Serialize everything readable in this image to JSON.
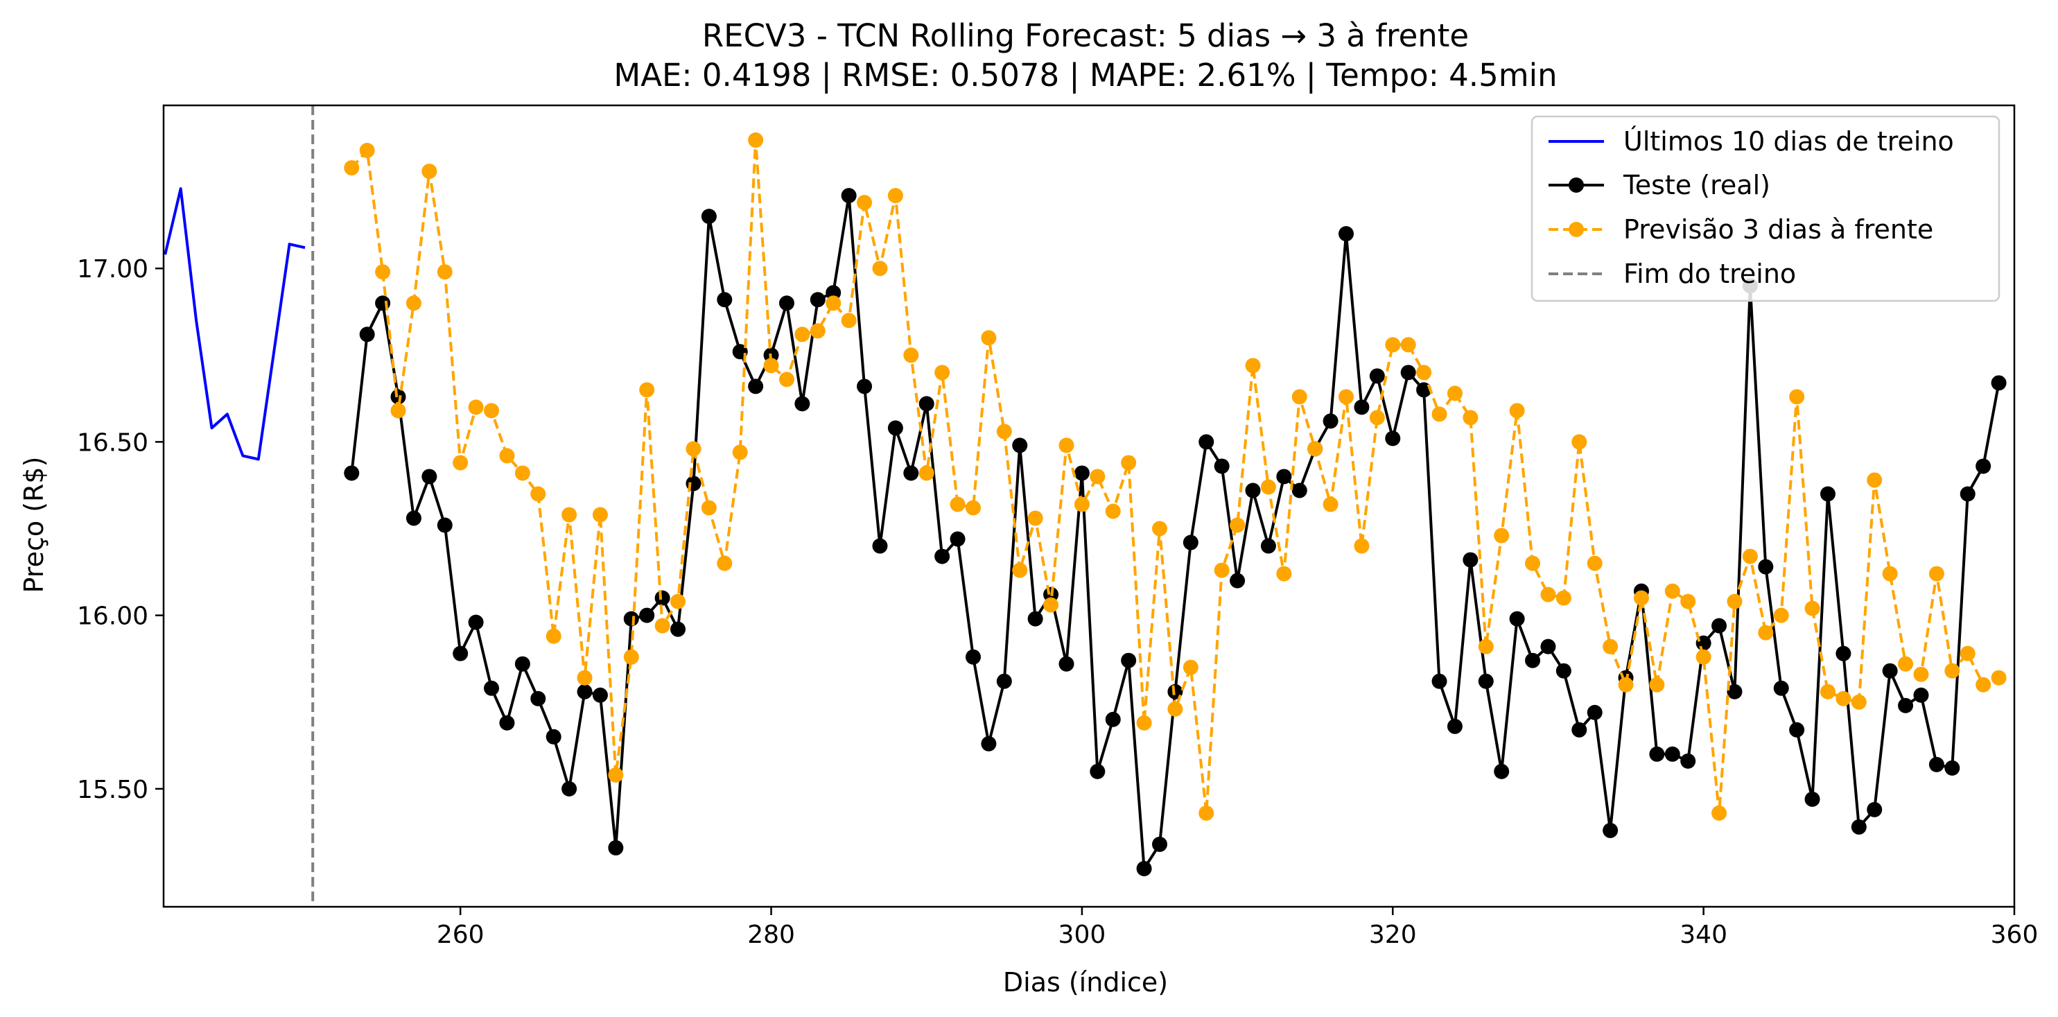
{
  "chart_data": {
    "type": "line",
    "title": "RECV3 - TCN Rolling Forecast: 5 dias → 3 à frente",
    "subtitle": "MAE: 0.4198 | RMSE: 0.5078 | MAPE: 2.61% | Tempo: 4.5min",
    "xlabel": "Dias (índice)",
    "ylabel": "Preço (R$)",
    "xlim": [
      240.9,
      360
    ],
    "ylim": [
      15.16,
      17.47
    ],
    "xticks": [
      260,
      280,
      300,
      320,
      340,
      360
    ],
    "xtick_labels": [
      "260",
      "280",
      "300",
      "320",
      "340",
      "360"
    ],
    "yticks": [
      15.5,
      16.0,
      16.5,
      17.0
    ],
    "ytick_labels": [
      "15.50",
      "16.00",
      "16.50",
      "17.00"
    ],
    "grid": false,
    "legend_position": "top-right",
    "vline": {
      "x": 250.5,
      "label": "Fim do treino",
      "color": "#808080",
      "style": "dashed"
    },
    "series": [
      {
        "name": "Últimos 10 dias de treino",
        "color": "#0000ff",
        "style": "solid",
        "marker": "none",
        "x": [
          241,
          242,
          243,
          244,
          245,
          246,
          247,
          248,
          249,
          250
        ],
        "y": [
          17.04,
          17.23,
          16.85,
          16.54,
          16.58,
          16.46,
          16.45,
          16.76,
          17.07,
          17.06
        ]
      },
      {
        "name": "Teste (real)",
        "color": "#000000",
        "style": "solid",
        "marker": "circle",
        "x": [
          253,
          254,
          255,
          256,
          257,
          258,
          259,
          260,
          261,
          262,
          263,
          264,
          265,
          266,
          267,
          268,
          269,
          270,
          271,
          272,
          273,
          274,
          275,
          276,
          277,
          278,
          279,
          280,
          281,
          282,
          283,
          284,
          285,
          286,
          287,
          288,
          289,
          290,
          291,
          292,
          293,
          294,
          295,
          296,
          297,
          298,
          299,
          300,
          301,
          302,
          303,
          304,
          305,
          306,
          307,
          308,
          309,
          310,
          311,
          312,
          313,
          314,
          315,
          316,
          317,
          318,
          319,
          320,
          321,
          322,
          323,
          324,
          325,
          326,
          327,
          328,
          329,
          330,
          331,
          332,
          333,
          334,
          335,
          336,
          337,
          338,
          339,
          340,
          341,
          342,
          343,
          344,
          345,
          346,
          347,
          348,
          349,
          350,
          351,
          352,
          353,
          354,
          355,
          356,
          357,
          358,
          359
        ],
        "y": [
          16.41,
          16.81,
          16.9,
          16.63,
          16.28,
          16.4,
          16.26,
          15.89,
          15.98,
          15.79,
          15.69,
          15.86,
          15.76,
          15.65,
          15.5,
          15.78,
          15.77,
          15.33,
          15.99,
          16.0,
          16.05,
          15.96,
          16.38,
          17.15,
          16.91,
          16.76,
          16.66,
          16.75,
          16.9,
          16.61,
          16.91,
          16.93,
          17.21,
          16.66,
          16.2,
          16.54,
          16.41,
          16.61,
          16.17,
          16.22,
          15.88,
          15.63,
          15.81,
          16.49,
          15.99,
          16.06,
          15.86,
          16.41,
          15.55,
          15.7,
          15.87,
          15.27,
          15.34,
          15.78,
          16.21,
          16.5,
          16.43,
          16.1,
          16.36,
          16.2,
          16.4,
          16.36,
          16.48,
          16.56,
          17.1,
          16.6,
          16.69,
          16.51,
          16.7,
          16.65,
          15.81,
          15.68,
          16.16,
          15.81,
          15.55,
          15.99,
          15.87,
          15.91,
          15.84,
          15.67,
          15.72,
          15.38,
          15.82,
          16.07,
          15.6,
          15.6,
          15.58,
          15.92,
          15.97,
          15.78,
          16.95,
          16.14,
          15.79,
          15.67,
          15.47,
          16.35,
          15.89,
          15.39,
          15.44,
          15.84,
          15.74,
          15.77,
          15.57,
          15.56,
          16.35,
          16.43,
          16.67
        ]
      },
      {
        "name": "Previsão 3 dias à frente",
        "color": "#ffa500",
        "style": "dashed",
        "marker": "circle",
        "x": [
          253,
          254,
          255,
          256,
          257,
          258,
          259,
          260,
          261,
          262,
          263,
          264,
          265,
          266,
          267,
          268,
          269,
          270,
          271,
          272,
          273,
          274,
          275,
          276,
          277,
          278,
          279,
          280,
          281,
          282,
          283,
          284,
          285,
          286,
          287,
          288,
          289,
          290,
          291,
          292,
          293,
          294,
          295,
          296,
          297,
          298,
          299,
          300,
          301,
          302,
          303,
          304,
          305,
          306,
          307,
          308,
          309,
          310,
          311,
          312,
          313,
          314,
          315,
          316,
          317,
          318,
          319,
          320,
          321,
          322,
          323,
          324,
          325,
          326,
          327,
          328,
          329,
          330,
          331,
          332,
          333,
          334,
          335,
          336,
          337,
          338,
          339,
          340,
          341,
          342,
          343,
          344,
          345,
          346,
          347,
          348,
          349,
          350,
          351,
          352,
          353,
          354,
          355,
          356,
          357,
          358,
          359
        ],
        "y": [
          17.29,
          17.34,
          16.99,
          16.59,
          16.9,
          17.28,
          16.99,
          16.44,
          16.6,
          16.59,
          16.46,
          16.41,
          16.35,
          15.94,
          16.29,
          15.82,
          16.29,
          15.54,
          15.88,
          16.65,
          15.97,
          16.04,
          16.48,
          16.31,
          16.15,
          16.47,
          17.37,
          16.72,
          16.68,
          16.81,
          16.82,
          16.9,
          16.85,
          17.19,
          17.0,
          17.21,
          16.75,
          16.41,
          16.7,
          16.32,
          16.31,
          16.8,
          16.53,
          16.13,
          16.28,
          16.03,
          16.49,
          16.32,
          16.4,
          16.3,
          16.44,
          15.69,
          16.25,
          15.73,
          15.85,
          15.43,
          16.13,
          16.26,
          16.72,
          16.37,
          16.12,
          16.63,
          16.48,
          16.32,
          16.63,
          16.2,
          16.57,
          16.78,
          16.78,
          16.7,
          16.58,
          16.64,
          16.57,
          15.91,
          16.23,
          16.59,
          16.15,
          16.06,
          16.05,
          16.5,
          16.15,
          15.91,
          15.8,
          16.05,
          15.8,
          16.07,
          16.04,
          15.88,
          15.43,
          16.04,
          16.17,
          15.95,
          16.0,
          16.63,
          16.02,
          15.78,
          15.76,
          15.75,
          16.39,
          16.12,
          15.86,
          15.83,
          16.12,
          15.84,
          15.89,
          15.8,
          15.82
        ]
      }
    ]
  }
}
